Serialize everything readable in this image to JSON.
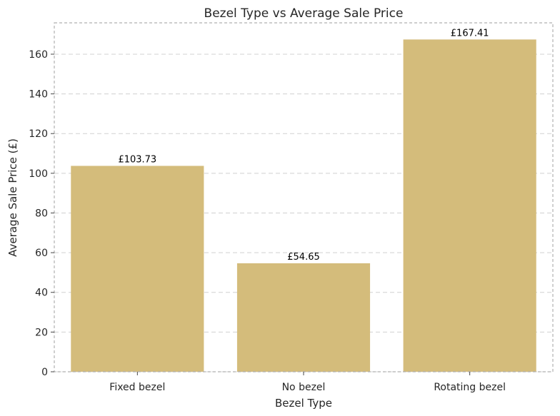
{
  "chart_data": {
    "type": "bar",
    "title": "Bezel Type vs Average Sale Price",
    "xlabel": "Bezel Type",
    "ylabel": "Average Sale Price (£)",
    "categories": [
      "Fixed bezel",
      "No bezel",
      "Rotating bezel"
    ],
    "values": [
      103.73,
      54.65,
      167.41
    ],
    "data_labels": [
      "£103.73",
      "£54.65",
      "£167.41"
    ],
    "ylim": [
      0,
      175.8
    ],
    "yticks": [
      0,
      20,
      40,
      60,
      80,
      100,
      120,
      140,
      160
    ],
    "grid": true,
    "bar_color": "#d4bc7b"
  }
}
